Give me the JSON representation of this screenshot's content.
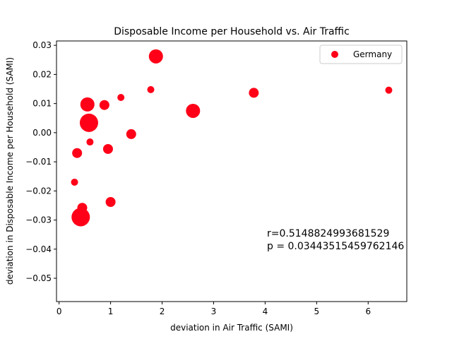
{
  "chart_data": {
    "type": "scatter",
    "title": "Disposable Income per Household vs. Air Traffic",
    "xlabel": "deviation in Air Traffic (SAMI)",
    "ylabel": "deviation in Disposable Income per Household (SAMI)",
    "xlim": [
      -0.05,
      6.75
    ],
    "ylim": [
      -0.058,
      0.0315
    ],
    "xticks": [
      0,
      1,
      2,
      3,
      4,
      5,
      6
    ],
    "yticks": [
      0.03,
      0.02,
      0.01,
      0.0,
      -0.01,
      -0.02,
      -0.03,
      -0.04,
      -0.05
    ],
    "xtick_labels": [
      "0",
      "1",
      "2",
      "3",
      "4",
      "5",
      "6"
    ],
    "ytick_labels": [
      "0.03",
      "0.02",
      "0.01",
      "0.00",
      "−0.01",
      "−0.02",
      "−0.03",
      "−0.04",
      "−0.05"
    ],
    "grid": false,
    "legend": {
      "position": "top-right",
      "entries": [
        {
          "label": "Germany",
          "color": "#ff0018"
        }
      ]
    },
    "series": [
      {
        "name": "Germany",
        "color": "#ff0018",
        "points": [
          {
            "x": 0.3,
            "y": -0.017,
            "size": "s"
          },
          {
            "x": 0.35,
            "y": -0.007,
            "size": "m"
          },
          {
            "x": 0.42,
            "y": -0.029,
            "size": "xl"
          },
          {
            "x": 0.45,
            "y": -0.0258,
            "size": "m"
          },
          {
            "x": 0.55,
            "y": 0.0097,
            "size": "l"
          },
          {
            "x": 0.58,
            "y": 0.0034,
            "size": "xl"
          },
          {
            "x": 0.6,
            "y": -0.0032,
            "size": "s"
          },
          {
            "x": 0.88,
            "y": 0.0095,
            "size": "m"
          },
          {
            "x": 0.95,
            "y": -0.0056,
            "size": "m"
          },
          {
            "x": 1.0,
            "y": -0.0238,
            "size": "m"
          },
          {
            "x": 1.2,
            "y": 0.0121,
            "size": "s"
          },
          {
            "x": 1.4,
            "y": -0.0005,
            "size": "m"
          },
          {
            "x": 1.78,
            "y": 0.0148,
            "size": "s"
          },
          {
            "x": 1.88,
            "y": 0.0262,
            "size": "l"
          },
          {
            "x": 2.6,
            "y": 0.0075,
            "size": "l"
          },
          {
            "x": 3.78,
            "y": 0.0137,
            "size": "m"
          },
          {
            "x": 6.4,
            "y": 0.0146,
            "size": "s"
          }
        ]
      }
    ],
    "annotations": [
      "r=0.5148824993681529",
      "p = 0.03443515459762146"
    ]
  }
}
